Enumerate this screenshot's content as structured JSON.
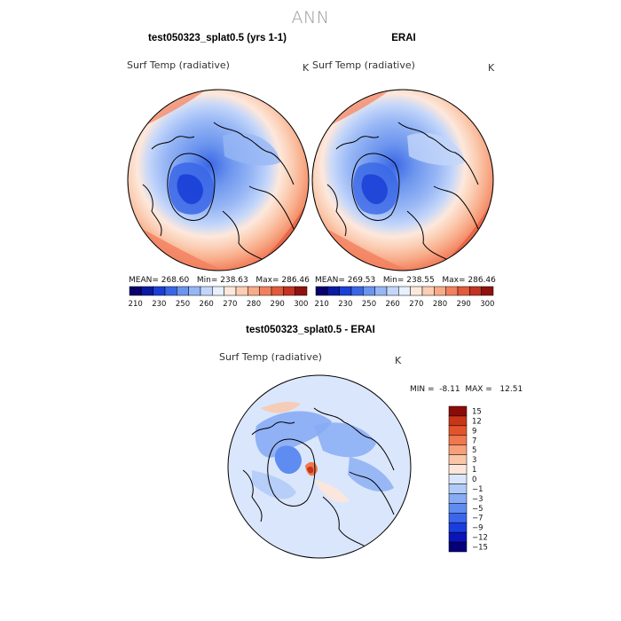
{
  "page": {
    "super_title": "ANN"
  },
  "colors": {
    "coast": "#000000",
    "abs_fill": [
      "#08006b",
      "#0a1aa3",
      "#1a3fd6",
      "#3a66e6",
      "#6b94ee",
      "#97b6f5",
      "#c3d6fa",
      "#e8f0fc",
      "#fde8dc",
      "#fbcdb3",
      "#f8ab88",
      "#f2805e",
      "#e15a3c",
      "#c33222",
      "#8e1210"
    ],
    "diff_fill": [
      "#05007a",
      "#0a14b8",
      "#1a3ddd",
      "#3a67ea",
      "#5f8cf0",
      "#87abf4",
      "#b1cbf7",
      "#dae6fb",
      "#fde6d9",
      "#fbc6a8",
      "#f6a07a",
      "#ef784e",
      "#e2552b",
      "#c83519",
      "#8c0b08"
    ]
  },
  "panels": [
    {
      "case_title": "test050323_splat0.5 (yrs 1-1)",
      "var_name": "Surf Temp (radiative)",
      "units": "K",
      "stats": {
        "mean_label": "MEAN=",
        "mean": "268.60",
        "min_label": "Min=",
        "min": "238.63",
        "max_label": "Max=",
        "max": "286.46"
      }
    },
    {
      "case_title": "ERAI",
      "var_name": "Surf Temp (radiative)",
      "units": "K",
      "stats": {
        "mean_label": "MEAN=",
        "mean": "269.53",
        "min_label": "Min=",
        "min": "238.55",
        "max_label": "Max=",
        "max": "286.46"
      }
    },
    {
      "case_title": "test050323_splat0.5 - ERAI",
      "var_name": "Surf Temp (radiative)",
      "units": "K",
      "stats": {
        "min_label": "MIN =",
        "min": "-8.11",
        "max_label": "MAX =",
        "max": "12.51"
      }
    }
  ],
  "chart_data": [
    {
      "type": "heatmap",
      "projection": "north polar stereographic",
      "title": "test050323_splat0.5 (yrs 1-1)",
      "variable": "Surf Temp (radiative)",
      "units": "K",
      "mean": 268.6,
      "min": 238.63,
      "max": 286.46,
      "colorbar": {
        "orientation": "horizontal",
        "levels": [
          210,
          220,
          230,
          240,
          250,
          255,
          260,
          265,
          270,
          275,
          280,
          285,
          290,
          295,
          300
        ],
        "tick_labels": [
          "210",
          "230",
          "250",
          "260",
          "270",
          "280",
          "290",
          "300"
        ]
      }
    },
    {
      "type": "heatmap",
      "projection": "north polar stereographic",
      "title": "ERAI",
      "variable": "Surf Temp (radiative)",
      "units": "K",
      "mean": 269.53,
      "min": 238.55,
      "max": 286.46,
      "colorbar": {
        "orientation": "horizontal",
        "levels": [
          210,
          220,
          230,
          240,
          250,
          255,
          260,
          265,
          270,
          275,
          280,
          285,
          290,
          295,
          300
        ],
        "tick_labels": [
          "210",
          "230",
          "250",
          "260",
          "270",
          "280",
          "290",
          "300"
        ]
      }
    },
    {
      "type": "heatmap",
      "projection": "north polar stereographic",
      "title": "test050323_splat0.5 - ERAI",
      "variable": "Surf Temp (radiative)",
      "units": "K",
      "min": -8.11,
      "max": 12.51,
      "colorbar": {
        "orientation": "vertical",
        "tick_labels": [
          "15",
          "12",
          "9",
          "7",
          "5",
          "3",
          "1",
          "0",
          "−1",
          "−3",
          "−5",
          "−7",
          "−9",
          "−12",
          "−15"
        ]
      }
    }
  ]
}
